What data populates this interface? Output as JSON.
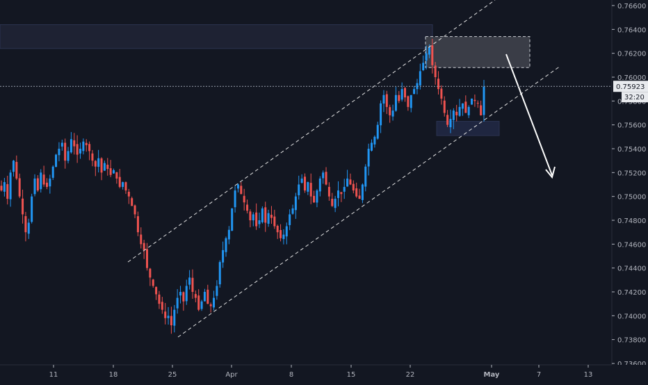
{
  "colors": {
    "background": "#131722",
    "up": "#2196f3",
    "down": "#ef5350",
    "axis_text": "#b2b5be",
    "axis_line": "#2a2e39",
    "annotation": "#e6e6e6",
    "supply_zone": "#1e2233",
    "target_zone": "#3a3d47",
    "demand_zone": "#1f2640",
    "price_label_bg": "#e8eaee",
    "price_label_text": "#131722"
  },
  "chart_data": {
    "type": "candlestick",
    "title": "",
    "xlabel": "",
    "ylabel": "",
    "ylim": [
      0.736,
      0.7672
    ],
    "grid": false,
    "y_ticks": [
      "0.76600",
      "0.76400",
      "0.76200",
      "0.76000",
      "0.75800",
      "0.75600",
      "0.75400",
      "0.75200",
      "0.75000",
      "0.74800",
      "0.74600",
      "0.74400",
      "0.74200",
      "0.74000",
      "0.73800",
      "0.73600"
    ],
    "x_ticks": [
      "11",
      "18",
      "25",
      "Apr",
      "8",
      "15",
      "22",
      "May",
      "7",
      "13"
    ],
    "last_price_label": "0.75923",
    "countdown_label": "32:20",
    "last_price": 0.75923,
    "trend_channel": {
      "lower_line": [
        [
          0.7382,
          0.7602
        ]
      ],
      "upper_line": [
        [
          0.7436,
          0.7672
        ]
      ],
      "description": ""
    },
    "zones": {
      "supply_top": [
        0.7644,
        0.7624
      ],
      "target_box": [
        0.7634,
        0.7608
      ],
      "demand_box": [
        0.7563,
        0.7551
      ]
    },
    "closes": [
      0.7505,
      0.7512,
      0.7498,
      0.752,
      0.753,
      0.7515,
      0.75,
      0.7485,
      0.747,
      0.7478,
      0.75,
      0.7515,
      0.7505,
      0.752,
      0.751,
      0.7508,
      0.7515,
      0.7525,
      0.7535,
      0.754,
      0.7545,
      0.753,
      0.7538,
      0.7548,
      0.7542,
      0.7535,
      0.754,
      0.7546,
      0.7543,
      0.7538,
      0.753,
      0.7525,
      0.7532,
      0.752,
      0.7528,
      0.7523,
      0.7518,
      0.7522,
      0.7515,
      0.7508,
      0.7512,
      0.7505,
      0.75,
      0.7492,
      0.7485,
      0.747,
      0.746,
      0.7455,
      0.744,
      0.7432,
      0.7425,
      0.7418,
      0.741,
      0.7405,
      0.7398,
      0.74,
      0.7392,
      0.7405,
      0.7415,
      0.742,
      0.7412,
      0.7425,
      0.7432,
      0.742,
      0.7415,
      0.7405,
      0.7412,
      0.742,
      0.741,
      0.7408,
      0.7415,
      0.7425,
      0.7445,
      0.7455,
      0.7465,
      0.7472,
      0.749,
      0.7505,
      0.751,
      0.7502,
      0.7495,
      0.7488,
      0.748,
      0.7485,
      0.7475,
      0.748,
      0.749,
      0.7478,
      0.7486,
      0.7482,
      0.7475,
      0.747,
      0.7465,
      0.7468,
      0.7475,
      0.7485,
      0.749,
      0.75,
      0.751,
      0.7515,
      0.7505,
      0.7512,
      0.75,
      0.7495,
      0.7505,
      0.7515,
      0.752,
      0.751,
      0.75,
      0.7492,
      0.7498,
      0.7505,
      0.7502,
      0.7508,
      0.7515,
      0.751,
      0.7505,
      0.75,
      0.7498,
      0.751,
      0.7525,
      0.754,
      0.7545,
      0.755,
      0.756,
      0.7578,
      0.7585,
      0.7575,
      0.7568,
      0.7572,
      0.7585,
      0.758,
      0.759,
      0.7583,
      0.7575,
      0.7585,
      0.759,
      0.7595,
      0.7605,
      0.7612,
      0.762,
      0.7625,
      0.761,
      0.76,
      0.759,
      0.7582,
      0.757,
      0.756,
      0.7565,
      0.7572,
      0.7568,
      0.7575,
      0.7578,
      0.757,
      0.7575,
      0.7582,
      0.758,
      0.7578,
      0.7568,
      0.7592
    ]
  },
  "annotations": {
    "channel_label": "",
    "arrow_label": ""
  }
}
